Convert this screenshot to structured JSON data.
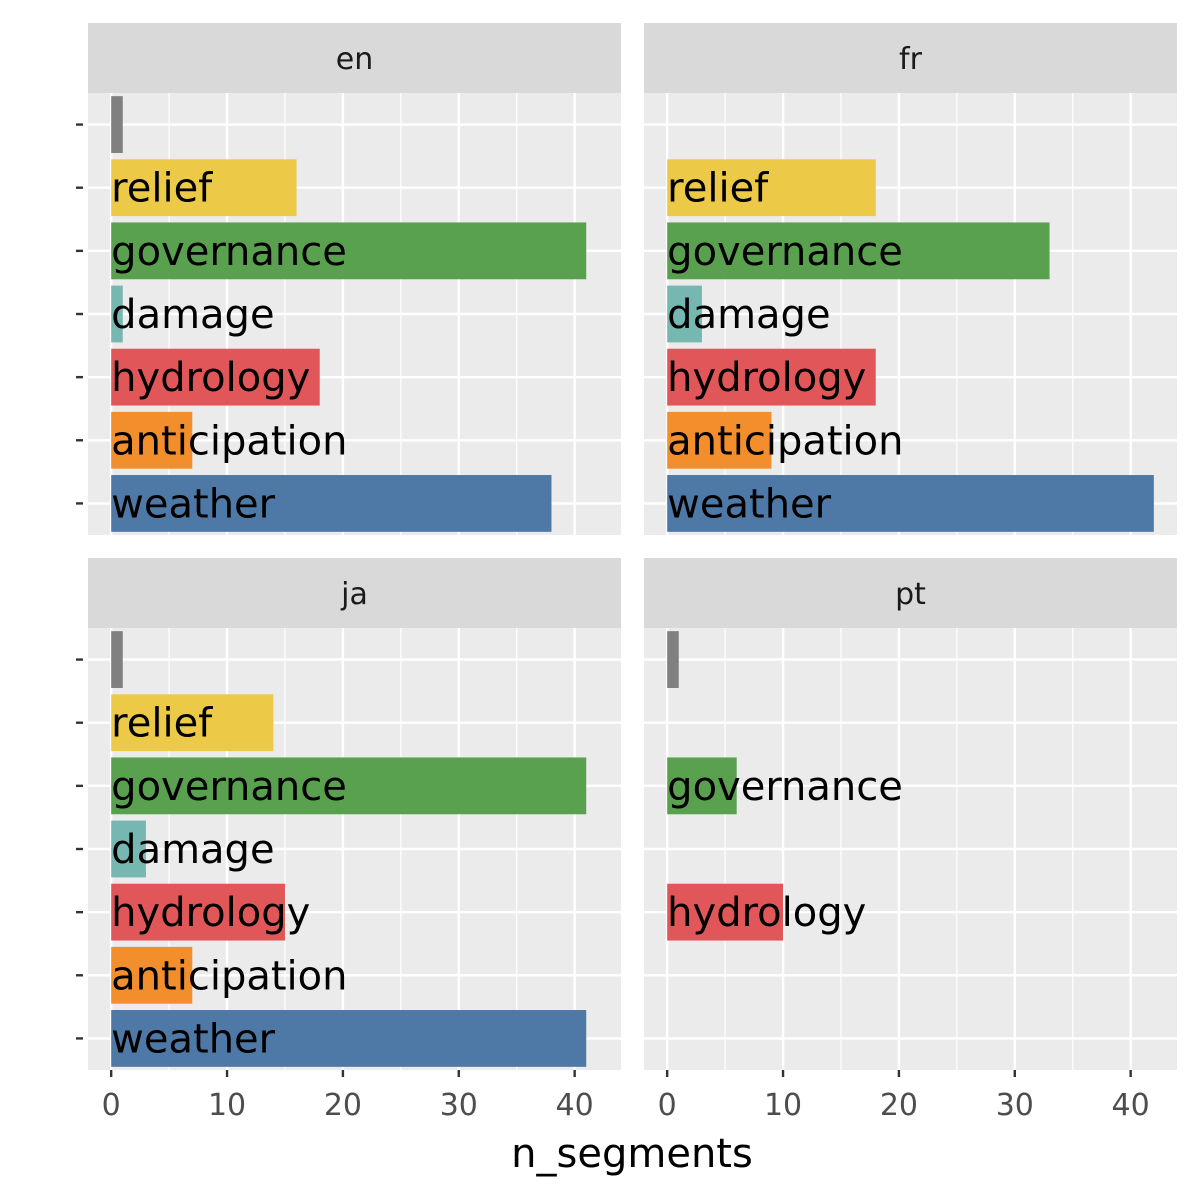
{
  "chart_data": {
    "type": "bar",
    "orientation": "horizontal",
    "facet": "wrap",
    "xlabel": "n_segments",
    "ylabel": "",
    "xlim": [
      -2,
      44
    ],
    "x_ticks": [
      0,
      10,
      20,
      30,
      40
    ],
    "categories": [
      "weather",
      "anticipation",
      "hydrology",
      "damage",
      "governance",
      "relief",
      ""
    ],
    "colors": {
      "weather": "#4e79a7",
      "anticipation": "#f28e2b",
      "hydrology": "#e15759",
      "damage": "#76b7b2",
      "governance": "#59a14f",
      "relief": "#edc948",
      "": "#808080"
    },
    "grid": true,
    "legend": "none",
    "panels": [
      {
        "name": "en",
        "values": {
          "weather": 38,
          "anticipation": 7,
          "hydrology": 18,
          "damage": 1,
          "governance": 41,
          "relief": 16,
          "": 1
        }
      },
      {
        "name": "fr",
        "values": {
          "weather": 42,
          "anticipation": 9,
          "hydrology": 18,
          "damage": 3,
          "governance": 33,
          "relief": 18
        }
      },
      {
        "name": "ja",
        "values": {
          "weather": 41,
          "anticipation": 7,
          "hydrology": 15,
          "damage": 3,
          "governance": 41,
          "relief": 14,
          "": 1
        }
      },
      {
        "name": "pt",
        "values": {
          "hydrology": 10,
          "governance": 6,
          "": 1
        }
      }
    ]
  }
}
